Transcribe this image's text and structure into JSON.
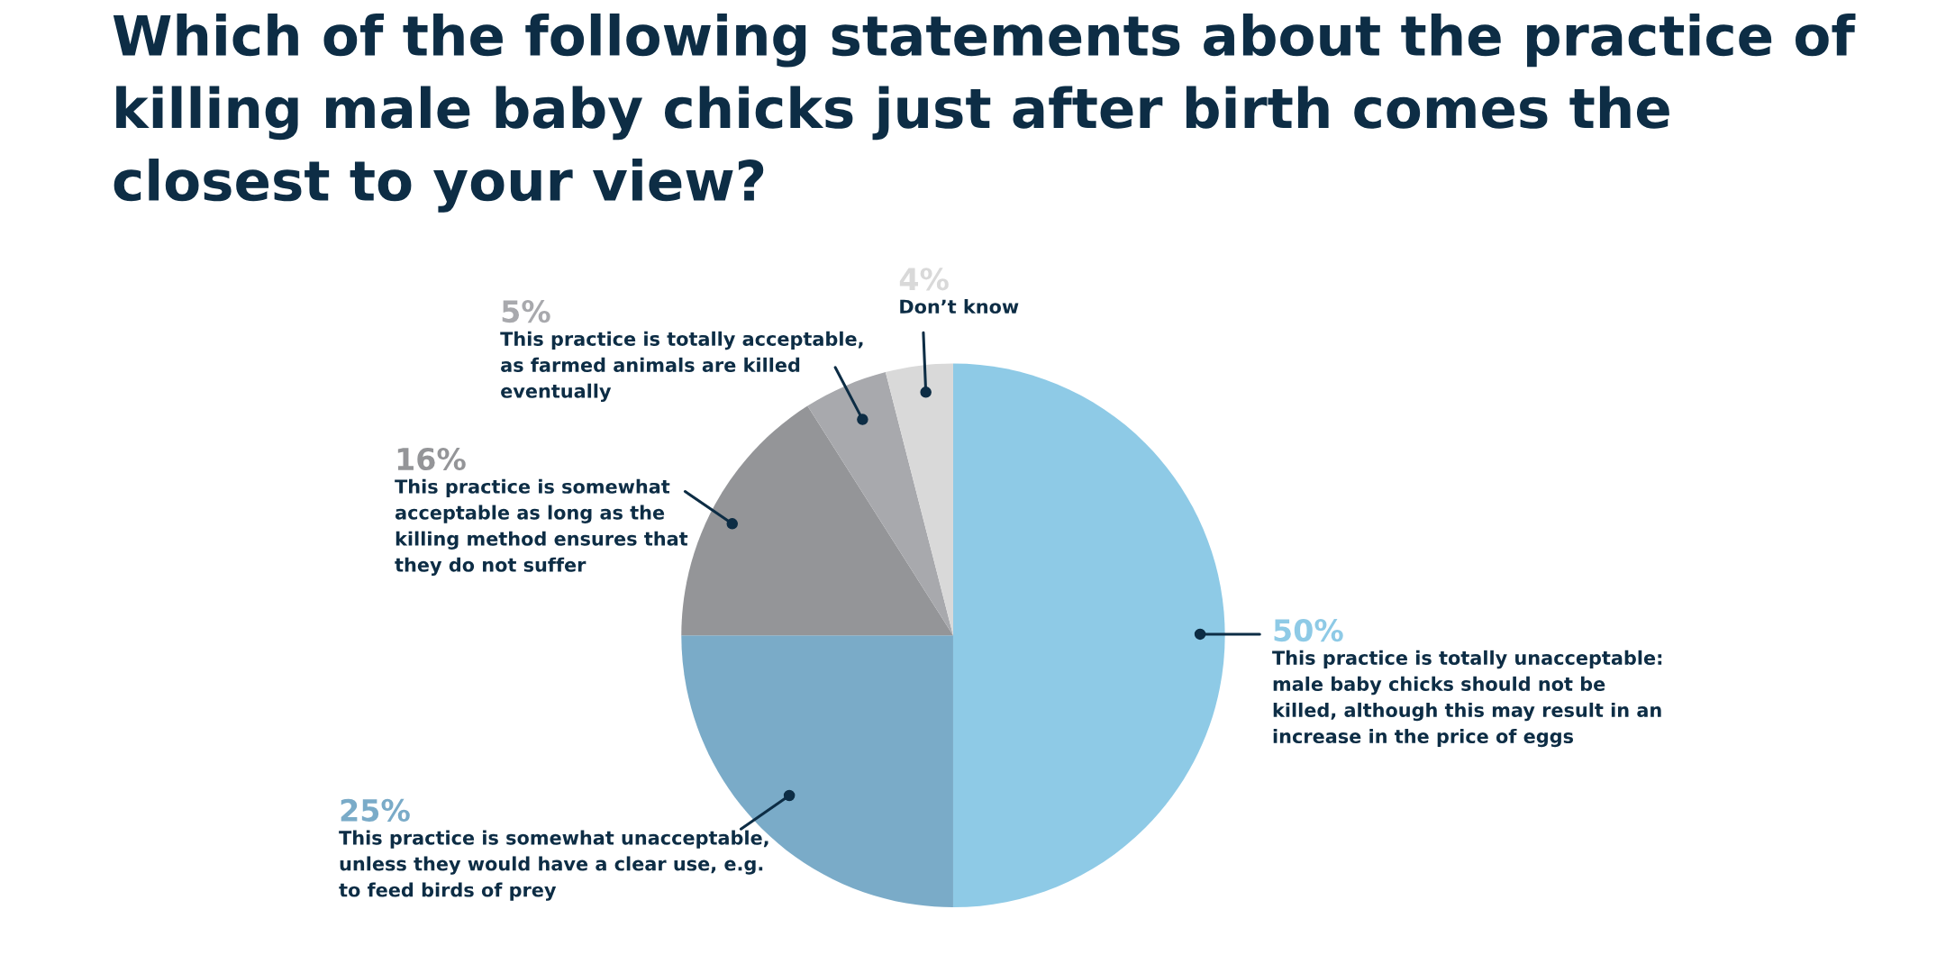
{
  "chart_data": {
    "type": "pie",
    "title": "Which of the following statements about the practice of\nkilling male baby chicks just after birth comes the\nclosest to your view?",
    "categories": [
      "This practice is totally unacceptable:\nmale baby chicks should not be\nkilled, although this may result in an\nincrease in the price of eggs",
      "This practice is somewhat unacceptable,\nunless they would have a clear use, e.g.\nto feed birds of prey",
      "This practice is somewhat\nacceptable as long as the\nkilling method ensures that\nthey do not suffer",
      "This practice is totally acceptable,\nas farmed animals are killed\neventually",
      "Don’t know"
    ],
    "values": [
      50,
      25,
      16,
      5,
      4
    ],
    "value_labels": [
      "50%",
      "25%",
      "16%",
      "5%",
      "4%"
    ],
    "colors": [
      "#8ecae6",
      "#7aabc8",
      "#949598",
      "#a8a9ad",
      "#d9d9d9"
    ]
  }
}
